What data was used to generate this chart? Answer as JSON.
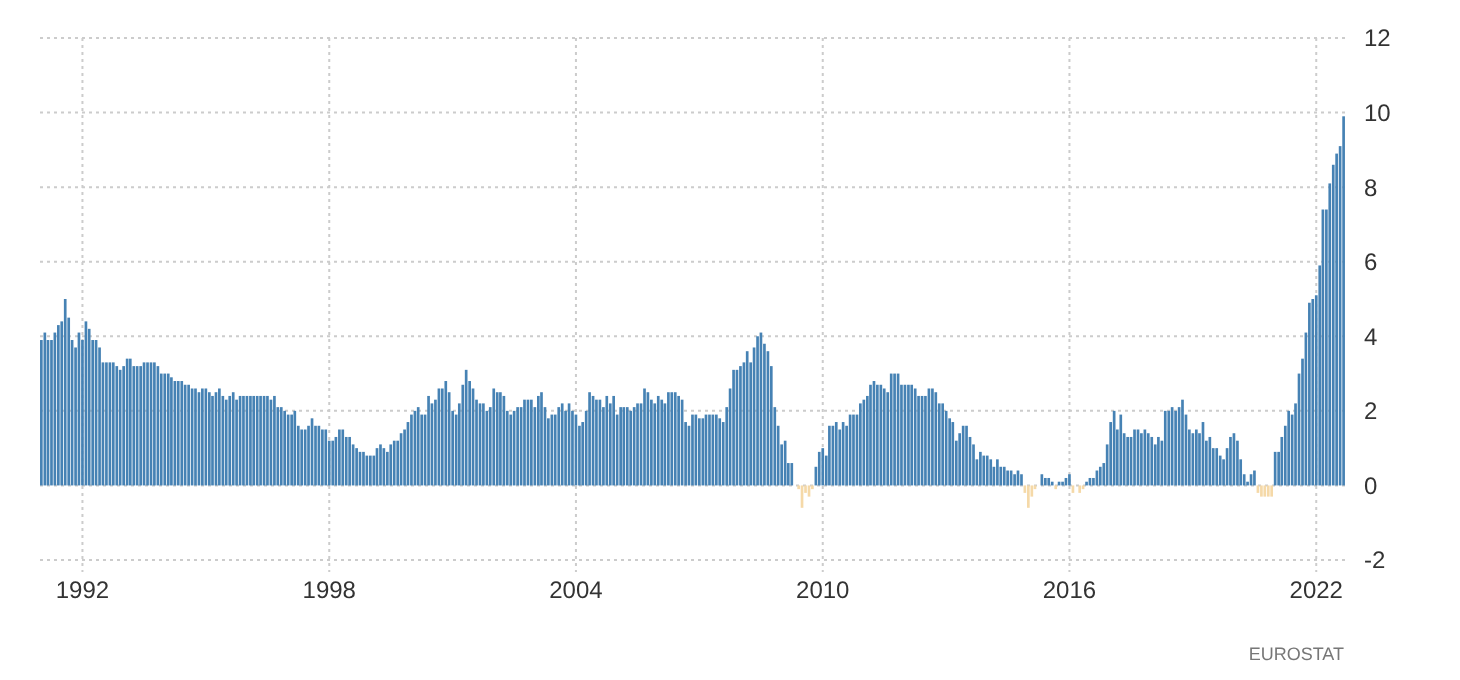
{
  "chart_data": {
    "type": "bar",
    "x": [
      "1991-01",
      "1991-02",
      "1991-03",
      "1991-04",
      "1991-05",
      "1991-06",
      "1991-07",
      "1991-08",
      "1991-09",
      "1991-10",
      "1991-11",
      "1991-12",
      "1992-01",
      "1992-02",
      "1992-03",
      "1992-04",
      "1992-05",
      "1992-06",
      "1992-07",
      "1992-08",
      "1992-09",
      "1992-10",
      "1992-11",
      "1992-12",
      "1993-01",
      "1993-02",
      "1993-03",
      "1993-04",
      "1993-05",
      "1993-06",
      "1993-07",
      "1993-08",
      "1993-09",
      "1993-10",
      "1993-11",
      "1993-12",
      "1994-01",
      "1994-02",
      "1994-03",
      "1994-04",
      "1994-05",
      "1994-06",
      "1994-07",
      "1994-08",
      "1994-09",
      "1994-10",
      "1994-11",
      "1994-12",
      "1995-01",
      "1995-02",
      "1995-03",
      "1995-04",
      "1995-05",
      "1995-06",
      "1995-07",
      "1995-08",
      "1995-09",
      "1995-10",
      "1995-11",
      "1995-12",
      "1996-01",
      "1996-02",
      "1996-03",
      "1996-04",
      "1996-05",
      "1996-06",
      "1996-07",
      "1996-08",
      "1996-09",
      "1996-10",
      "1996-11",
      "1996-12",
      "1997-01",
      "1997-02",
      "1997-03",
      "1997-04",
      "1997-05",
      "1997-06",
      "1997-07",
      "1997-08",
      "1997-09",
      "1997-10",
      "1997-11",
      "1997-12",
      "1998-01",
      "1998-02",
      "1998-03",
      "1998-04",
      "1998-05",
      "1998-06",
      "1998-07",
      "1998-08",
      "1998-09",
      "1998-10",
      "1998-11",
      "1998-12",
      "1999-01",
      "1999-02",
      "1999-03",
      "1999-04",
      "1999-05",
      "1999-06",
      "1999-07",
      "1999-08",
      "1999-09",
      "1999-10",
      "1999-11",
      "1999-12",
      "2000-01",
      "2000-02",
      "2000-03",
      "2000-04",
      "2000-05",
      "2000-06",
      "2000-07",
      "2000-08",
      "2000-09",
      "2000-10",
      "2000-11",
      "2000-12",
      "2001-01",
      "2001-02",
      "2001-03",
      "2001-04",
      "2001-05",
      "2001-06",
      "2001-07",
      "2001-08",
      "2001-09",
      "2001-10",
      "2001-11",
      "2001-12",
      "2002-01",
      "2002-02",
      "2002-03",
      "2002-04",
      "2002-05",
      "2002-06",
      "2002-07",
      "2002-08",
      "2002-09",
      "2002-10",
      "2002-11",
      "2002-12",
      "2003-01",
      "2003-02",
      "2003-03",
      "2003-04",
      "2003-05",
      "2003-06",
      "2003-07",
      "2003-08",
      "2003-09",
      "2003-10",
      "2003-11",
      "2003-12",
      "2004-01",
      "2004-02",
      "2004-03",
      "2004-04",
      "2004-05",
      "2004-06",
      "2004-07",
      "2004-08",
      "2004-09",
      "2004-10",
      "2004-11",
      "2004-12",
      "2005-01",
      "2005-02",
      "2005-03",
      "2005-04",
      "2005-05",
      "2005-06",
      "2005-07",
      "2005-08",
      "2005-09",
      "2005-10",
      "2005-11",
      "2005-12",
      "2006-01",
      "2006-02",
      "2006-03",
      "2006-04",
      "2006-05",
      "2006-06",
      "2006-07",
      "2006-08",
      "2006-09",
      "2006-10",
      "2006-11",
      "2006-12",
      "2007-01",
      "2007-02",
      "2007-03",
      "2007-04",
      "2007-05",
      "2007-06",
      "2007-07",
      "2007-08",
      "2007-09",
      "2007-10",
      "2007-11",
      "2007-12",
      "2008-01",
      "2008-02",
      "2008-03",
      "2008-04",
      "2008-05",
      "2008-06",
      "2008-07",
      "2008-08",
      "2008-09",
      "2008-10",
      "2008-11",
      "2008-12",
      "2009-01",
      "2009-02",
      "2009-03",
      "2009-04",
      "2009-05",
      "2009-06",
      "2009-07",
      "2009-08",
      "2009-09",
      "2009-10",
      "2009-11",
      "2009-12",
      "2010-01",
      "2010-02",
      "2010-03",
      "2010-04",
      "2010-05",
      "2010-06",
      "2010-07",
      "2010-08",
      "2010-09",
      "2010-10",
      "2010-11",
      "2010-12",
      "2011-01",
      "2011-02",
      "2011-03",
      "2011-04",
      "2011-05",
      "2011-06",
      "2011-07",
      "2011-08",
      "2011-09",
      "2011-10",
      "2011-11",
      "2011-12",
      "2012-01",
      "2012-02",
      "2012-03",
      "2012-04",
      "2012-05",
      "2012-06",
      "2012-07",
      "2012-08",
      "2012-09",
      "2012-10",
      "2012-11",
      "2012-12",
      "2013-01",
      "2013-02",
      "2013-03",
      "2013-04",
      "2013-05",
      "2013-06",
      "2013-07",
      "2013-08",
      "2013-09",
      "2013-10",
      "2013-11",
      "2013-12",
      "2014-01",
      "2014-02",
      "2014-03",
      "2014-04",
      "2014-05",
      "2014-06",
      "2014-07",
      "2014-08",
      "2014-09",
      "2014-10",
      "2014-11",
      "2014-12",
      "2015-01",
      "2015-02",
      "2015-03",
      "2015-04",
      "2015-05",
      "2015-06",
      "2015-07",
      "2015-08",
      "2015-09",
      "2015-10",
      "2015-11",
      "2015-12",
      "2016-01",
      "2016-02",
      "2016-03",
      "2016-04",
      "2016-05",
      "2016-06",
      "2016-07",
      "2016-08",
      "2016-09",
      "2016-10",
      "2016-11",
      "2016-12",
      "2017-01",
      "2017-02",
      "2017-03",
      "2017-04",
      "2017-05",
      "2017-06",
      "2017-07",
      "2017-08",
      "2017-09",
      "2017-10",
      "2017-11",
      "2017-12",
      "2018-01",
      "2018-02",
      "2018-03",
      "2018-04",
      "2018-05",
      "2018-06",
      "2018-07",
      "2018-08",
      "2018-09",
      "2018-10",
      "2018-11",
      "2018-12",
      "2019-01",
      "2019-02",
      "2019-03",
      "2019-04",
      "2019-05",
      "2019-06",
      "2019-07",
      "2019-08",
      "2019-09",
      "2019-10",
      "2019-11",
      "2019-12",
      "2020-01",
      "2020-02",
      "2020-03",
      "2020-04",
      "2020-05",
      "2020-06",
      "2020-07",
      "2020-08",
      "2020-09",
      "2020-10",
      "2020-11",
      "2020-12",
      "2021-01",
      "2021-02",
      "2021-03",
      "2021-04",
      "2021-05",
      "2021-06",
      "2021-07",
      "2021-08",
      "2021-09",
      "2021-10",
      "2021-11",
      "2021-12",
      "2022-01",
      "2022-02",
      "2022-03",
      "2022-04",
      "2022-05",
      "2022-06",
      "2022-07",
      "2022-08",
      "2022-09"
    ],
    "values": [
      3.9,
      4.1,
      3.9,
      3.9,
      4.1,
      4.3,
      4.4,
      5.0,
      4.5,
      3.9,
      3.7,
      4.1,
      3.9,
      4.4,
      4.2,
      3.9,
      3.9,
      3.7,
      3.3,
      3.3,
      3.3,
      3.3,
      3.2,
      3.1,
      3.2,
      3.4,
      3.4,
      3.2,
      3.2,
      3.2,
      3.3,
      3.3,
      3.3,
      3.3,
      3.2,
      3.0,
      3.0,
      3.0,
      2.9,
      2.8,
      2.8,
      2.8,
      2.7,
      2.7,
      2.6,
      2.6,
      2.5,
      2.6,
      2.6,
      2.5,
      2.4,
      2.5,
      2.6,
      2.4,
      2.3,
      2.4,
      2.5,
      2.3,
      2.4,
      2.4,
      2.4,
      2.4,
      2.4,
      2.4,
      2.4,
      2.4,
      2.4,
      2.3,
      2.4,
      2.1,
      2.1,
      2.0,
      1.9,
      1.9,
      2.0,
      1.6,
      1.5,
      1.5,
      1.6,
      1.8,
      1.6,
      1.6,
      1.5,
      1.5,
      1.2,
      1.2,
      1.3,
      1.5,
      1.5,
      1.3,
      1.3,
      1.1,
      1.0,
      0.9,
      0.9,
      0.8,
      0.8,
      0.8,
      1.0,
      1.1,
      1.0,
      0.9,
      1.1,
      1.2,
      1.2,
      1.4,
      1.5,
      1.7,
      1.9,
      2.0,
      2.1,
      1.9,
      1.9,
      2.4,
      2.2,
      2.3,
      2.6,
      2.6,
      2.8,
      2.5,
      2.0,
      1.9,
      2.2,
      2.7,
      3.1,
      2.8,
      2.6,
      2.3,
      2.2,
      2.2,
      2.0,
      2.1,
      2.6,
      2.5,
      2.5,
      2.4,
      2.0,
      1.9,
      2.0,
      2.1,
      2.1,
      2.3,
      2.3,
      2.3,
      2.1,
      2.4,
      2.5,
      2.1,
      1.8,
      1.9,
      1.9,
      2.1,
      2.2,
      2.0,
      2.2,
      2.0,
      1.9,
      1.6,
      1.7,
      2.0,
      2.5,
      2.4,
      2.3,
      2.3,
      2.1,
      2.4,
      2.2,
      2.4,
      1.9,
      2.1,
      2.1,
      2.1,
      2.0,
      2.1,
      2.2,
      2.2,
      2.6,
      2.5,
      2.3,
      2.2,
      2.4,
      2.3,
      2.2,
      2.5,
      2.5,
      2.5,
      2.4,
      2.3,
      1.7,
      1.6,
      1.9,
      1.9,
      1.8,
      1.8,
      1.9,
      1.9,
      1.9,
      1.9,
      1.8,
      1.7,
      2.1,
      2.6,
      3.1,
      3.1,
      3.2,
      3.3,
      3.6,
      3.3,
      3.7,
      4.0,
      4.1,
      3.8,
      3.6,
      3.2,
      2.1,
      1.6,
      1.1,
      1.2,
      0.6,
      0.6,
      0.0,
      -0.1,
      -0.6,
      -0.2,
      -0.3,
      -0.1,
      0.5,
      0.9,
      1.0,
      0.8,
      1.6,
      1.6,
      1.7,
      1.5,
      1.7,
      1.6,
      1.9,
      1.9,
      1.9,
      2.2,
      2.3,
      2.4,
      2.7,
      2.8,
      2.7,
      2.7,
      2.6,
      2.5,
      3.0,
      3.0,
      3.0,
      2.7,
      2.7,
      2.7,
      2.7,
      2.6,
      2.4,
      2.4,
      2.4,
      2.6,
      2.6,
      2.5,
      2.2,
      2.2,
      2.0,
      1.8,
      1.7,
      1.2,
      1.4,
      1.6,
      1.6,
      1.3,
      1.1,
      0.7,
      0.9,
      0.8,
      0.8,
      0.7,
      0.5,
      0.7,
      0.5,
      0.5,
      0.4,
      0.4,
      0.3,
      0.4,
      0.3,
      -0.2,
      -0.6,
      -0.3,
      -0.1,
      0.0,
      0.3,
      0.2,
      0.2,
      0.1,
      -0.1,
      0.1,
      0.1,
      0.2,
      0.3,
      -0.2,
      0.0,
      -0.2,
      -0.1,
      0.1,
      0.2,
      0.2,
      0.4,
      0.5,
      0.6,
      1.1,
      1.7,
      2.0,
      1.5,
      1.9,
      1.4,
      1.3,
      1.3,
      1.5,
      1.5,
      1.4,
      1.5,
      1.4,
      1.3,
      1.1,
      1.3,
      1.2,
      2.0,
      2.0,
      2.1,
      2.0,
      2.1,
      2.3,
      1.9,
      1.5,
      1.4,
      1.5,
      1.4,
      1.7,
      1.2,
      1.3,
      1.0,
      1.0,
      0.8,
      0.7,
      1.0,
      1.3,
      1.4,
      1.2,
      0.7,
      0.3,
      0.1,
      0.3,
      0.4,
      -0.2,
      -0.3,
      -0.3,
      -0.3,
      -0.3,
      0.9,
      0.9,
      1.3,
      1.6,
      2.0,
      1.9,
      2.2,
      3.0,
      3.4,
      4.1,
      4.9,
      5.0,
      5.1,
      5.9,
      7.4,
      7.4,
      8.1,
      8.6,
      8.9,
      9.1,
      9.9
    ],
    "colors": [
      "#4682b4",
      "#4682b4",
      "#4682b4",
      "#4682b4",
      "#4682b4",
      "#4682b4",
      "#4682b4",
      "#4682b4",
      "#4682b4",
      "#4682b4",
      "#4682b4",
      "#4682b4",
      "#4682b4",
      "#4682b4",
      "#4682b4",
      "#4682b4",
      "#4682b4",
      "#4682b4",
      "#4682b4",
      "#4682b4",
      "#4682b4",
      "#4682b4",
      "#4682b4",
      "#4682b4",
      "#4682b4",
      "#4682b4",
      "#4682b4",
      "#4682b4",
      "#4682b4",
      "#4682b4",
      "#4682b4",
      "#4682b4",
      "#4682b4",
      "#4682b4",
      "#4682b4",
      "#4682b4",
      "#4682b4",
      "#4682b4",
      "#4682b4",
      "#4682b4",
      "#4682b4",
      "#4682b4",
      "#4682b4",
      "#4682b4",
      "#4682b4",
      "#4682b4",
      "#4682b4",
      "#4682b4",
      "#4682b4",
      "#4682b4",
      "#4682b4",
      "#4682b4",
      "#4682b4",
      "#4682b4",
      "#4682b4",
      "#4682b4",
      "#4682b4",
      "#4682b4",
      "#4682b4",
      "#4682b4",
      "#4682b4",
      "#4682b4",
      "#4682b4",
      "#4682b4",
      "#4682b4",
      "#4682b4",
      "#4682b4",
      "#4682b4",
      "#4682b4",
      "#4682b4",
      "#4682b4",
      "#4682b4",
      "#4682b4",
      "#4682b4",
      "#4682b4",
      "#4682b4",
      "#4682b4",
      "#4682b4",
      "#4682b4",
      "#4682b4",
      "#4682b4",
      "#4682b4",
      "#4682b4",
      "#4682b4",
      "#4682b4",
      "#4682b4",
      "#4682b4",
      "#4682b4",
      "#4682b4",
      "#4682b4",
      "#4682b4",
      "#4682b4",
      "#4682b4",
      "#4682b4",
      "#4682b4",
      "#4682b4",
      "#4682b4",
      "#4682b4",
      "#4682b4",
      "#4682b4",
      "#4682b4",
      "#4682b4",
      "#4682b4",
      "#4682b4",
      "#4682b4",
      "#4682b4",
      "#4682b4",
      "#4682b4",
      "#4682b4",
      "#4682b4",
      "#4682b4",
      "#4682b4",
      "#4682b4",
      "#4682b4",
      "#4682b4",
      "#4682b4",
      "#4682b4",
      "#4682b4",
      "#4682b4",
      "#4682b4",
      "#4682b4",
      "#4682b4",
      "#4682b4",
      "#4682b4",
      "#4682b4",
      "#4682b4",
      "#4682b4",
      "#4682b4",
      "#4682b4",
      "#4682b4",
      "#4682b4",
      "#4682b4",
      "#4682b4",
      "#4682b4",
      "#4682b4",
      "#4682b4",
      "#4682b4",
      "#4682b4",
      "#4682b4",
      "#4682b4",
      "#4682b4",
      "#4682b4",
      "#4682b4",
      "#4682b4",
      "#4682b4",
      "#4682b4",
      "#4682b4",
      "#4682b4",
      "#4682b4",
      "#4682b4",
      "#4682b4",
      "#4682b4",
      "#4682b4",
      "#4682b4",
      "#4682b4",
      "#4682b4",
      "#4682b4",
      "#4682b4",
      "#4682b4",
      "#4682b4",
      "#4682b4",
      "#4682b4",
      "#4682b4",
      "#4682b4",
      "#4682b4",
      "#4682b4",
      "#4682b4",
      "#4682b4",
      "#4682b4",
      "#4682b4",
      "#4682b4",
      "#4682b4",
      "#4682b4",
      "#4682b4",
      "#4682b4",
      "#4682b4",
      "#4682b4",
      "#4682b4",
      "#4682b4",
      "#4682b4",
      "#4682b4",
      "#4682b4",
      "#4682b4",
      "#4682b4",
      "#4682b4",
      "#4682b4",
      "#4682b4",
      "#4682b4",
      "#4682b4",
      "#4682b4",
      "#4682b4",
      "#4682b4",
      "#4682b4",
      "#4682b4",
      "#4682b4",
      "#4682b4",
      "#4682b4",
      "#4682b4",
      "#4682b4",
      "#4682b4",
      "#4682b4",
      "#4682b4",
      "#4682b4",
      "#4682b4",
      "#4682b4",
      "#4682b4",
      "#4682b4",
      "#4682b4",
      "#4682b4",
      "#4682b4",
      "#4682b4",
      "#4682b4",
      "#4682b4",
      "#4682b4",
      "#4682b4",
      "#4682b4",
      "#4682b4",
      "#4682b4",
      "#4682b4",
      "#4682b4",
      "#4682b4",
      "#f5d9a8",
      "#f5d9a8",
      "#f5d9a8",
      "#f5d9a8",
      "#f5d9a8",
      "#4682b4",
      "#4682b4",
      "#4682b4",
      "#4682b4",
      "#4682b4",
      "#4682b4",
      "#4682b4",
      "#4682b4",
      "#4682b4",
      "#4682b4",
      "#4682b4",
      "#4682b4",
      "#4682b4",
      "#4682b4",
      "#4682b4",
      "#4682b4",
      "#4682b4",
      "#4682b4",
      "#4682b4",
      "#4682b4",
      "#4682b4",
      "#4682b4",
      "#4682b4",
      "#4682b4",
      "#4682b4",
      "#4682b4",
      "#4682b4",
      "#4682b4",
      "#4682b4",
      "#4682b4",
      "#4682b4",
      "#4682b4",
      "#4682b4",
      "#4682b4",
      "#4682b4",
      "#4682b4",
      "#4682b4",
      "#4682b4",
      "#4682b4",
      "#4682b4",
      "#4682b4",
      "#4682b4",
      "#4682b4",
      "#4682b4",
      "#4682b4",
      "#4682b4",
      "#4682b4",
      "#4682b4",
      "#4682b4",
      "#4682b4",
      "#4682b4",
      "#4682b4",
      "#4682b4",
      "#4682b4",
      "#4682b4",
      "#4682b4",
      "#4682b4",
      "#4682b4",
      "#4682b4",
      "#4682b4",
      "#4682b4",
      "#f5d9a8",
      "#f5d9a8",
      "#f5d9a8",
      "#f5d9a8",
      "#4682b4",
      "#4682b4",
      "#4682b4",
      "#4682b4",
      "#4682b4",
      "#f5d9a8",
      "#4682b4",
      "#4682b4",
      "#4682b4",
      "#4682b4",
      "#f5d9a8",
      "#4682b4",
      "#f5d9a8",
      "#f5d9a8",
      "#4682b4",
      "#4682b4",
      "#4682b4",
      "#4682b4",
      "#4682b4",
      "#4682b4",
      "#4682b4",
      "#4682b4",
      "#4682b4",
      "#4682b4",
      "#4682b4",
      "#4682b4",
      "#4682b4",
      "#4682b4",
      "#4682b4",
      "#4682b4",
      "#4682b4",
      "#4682b4",
      "#4682b4",
      "#4682b4",
      "#4682b4",
      "#4682b4",
      "#4682b4",
      "#4682b4",
      "#4682b4",
      "#4682b4",
      "#4682b4",
      "#4682b4",
      "#4682b4",
      "#4682b4",
      "#4682b4",
      "#4682b4",
      "#4682b4",
      "#4682b4",
      "#4682b4",
      "#4682b4",
      "#4682b4",
      "#4682b4",
      "#4682b4",
      "#4682b4",
      "#4682b4",
      "#4682b4",
      "#4682b4",
      "#4682b4",
      "#4682b4",
      "#4682b4",
      "#4682b4",
      "#4682b4",
      "#4682b4",
      "#4682b4",
      "#f5d9a8",
      "#f5d9a8",
      "#f5d9a8",
      "#f5d9a8",
      "#f5d9a8",
      "#4682b4",
      "#4682b4",
      "#4682b4",
      "#4682b4",
      "#4682b4",
      "#4682b4",
      "#4682b4",
      "#4682b4",
      "#4682b4",
      "#4682b4",
      "#4682b4",
      "#4682b4",
      "#4682b4",
      "#4682b4",
      "#4682b4",
      "#4682b4",
      "#4682b4",
      "#4682b4",
      "#4682b4",
      "#4682b4",
      "#4682b4"
    ],
    "xlim": [
      "1990-12-20",
      "2022-10-10"
    ],
    "xticks": [
      "1992",
      "1998",
      "2004",
      "2010",
      "2016",
      "2022"
    ],
    "ylim": [
      -2,
      12
    ],
    "yticks": [
      -2,
      0,
      2,
      4,
      6,
      8,
      10,
      12
    ],
    "grid": true,
    "annotations": [
      "EUROSTAT"
    ]
  }
}
